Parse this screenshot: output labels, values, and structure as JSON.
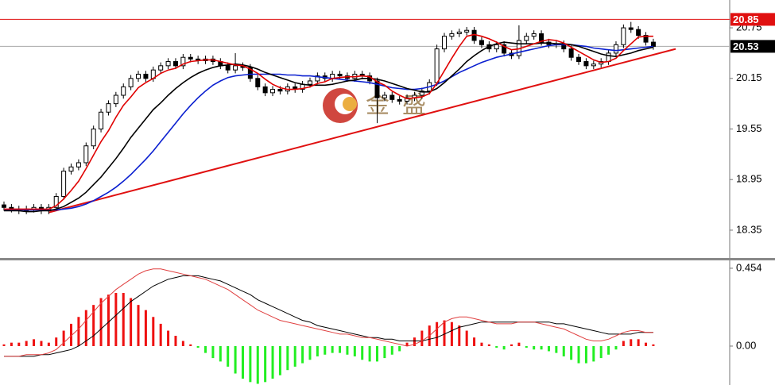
{
  "chart_data": [
    {
      "type": "candlestick",
      "open": [
        18.65,
        18.62,
        18.6,
        18.58,
        18.6,
        18.62,
        18.58,
        18.62,
        18.75,
        19.05,
        19.1,
        19.15,
        19.35,
        19.55,
        19.75,
        19.85,
        19.95,
        20.05,
        20.15,
        20.2,
        20.15,
        20.25,
        20.3,
        20.35,
        20.3,
        20.4,
        20.38,
        20.36,
        20.38,
        20.35,
        20.3,
        20.25,
        20.3,
        20.28,
        20.15,
        20.05,
        19.98,
        20.02,
        20.0,
        20.05,
        20.02,
        20.08,
        20.12,
        20.18,
        20.15,
        20.2,
        20.18,
        20.15,
        20.2,
        20.18,
        20.12,
        19.92,
        19.95,
        19.9,
        19.88,
        19.92,
        19.95,
        20.0,
        20.1,
        20.5,
        20.65,
        20.68,
        20.7,
        20.72,
        20.6,
        20.55,
        20.5,
        20.55,
        20.45,
        20.42,
        20.6,
        20.65,
        20.68,
        20.58,
        20.55,
        20.56,
        20.5,
        20.4,
        20.35,
        20.3,
        20.32,
        20.35,
        20.45,
        20.55,
        20.75,
        20.73,
        20.66,
        20.58
      ],
      "high": [
        18.69,
        18.66,
        18.64,
        18.64,
        18.66,
        18.66,
        18.66,
        18.79,
        19.09,
        19.14,
        19.19,
        19.39,
        19.59,
        19.79,
        19.89,
        19.99,
        20.09,
        20.19,
        20.24,
        20.24,
        20.29,
        20.34,
        20.39,
        20.39,
        20.44,
        20.44,
        20.42,
        20.42,
        20.42,
        20.39,
        20.34,
        20.45,
        20.34,
        20.32,
        20.19,
        20.09,
        20.06,
        20.06,
        20.09,
        20.09,
        20.12,
        20.16,
        20.22,
        20.22,
        20.24,
        20.24,
        20.22,
        20.24,
        20.24,
        20.22,
        20.16,
        19.99,
        19.99,
        19.94,
        19.96,
        19.99,
        20.04,
        20.14,
        20.55,
        20.69,
        20.72,
        20.74,
        20.76,
        20.76,
        20.64,
        20.59,
        20.59,
        20.59,
        20.49,
        20.78,
        20.69,
        20.72,
        20.72,
        20.62,
        20.6,
        20.6,
        20.54,
        20.44,
        20.39,
        20.36,
        20.39,
        20.49,
        20.59,
        20.79,
        20.82,
        20.77,
        20.7,
        20.62
      ],
      "low": [
        18.58,
        18.56,
        18.54,
        18.54,
        18.56,
        18.54,
        18.54,
        18.58,
        18.71,
        19.01,
        19.06,
        19.11,
        19.31,
        19.51,
        19.71,
        19.81,
        19.91,
        20.01,
        20.11,
        20.11,
        20.11,
        20.21,
        20.26,
        20.26,
        20.26,
        20.34,
        20.32,
        20.32,
        20.31,
        20.26,
        20.21,
        20.21,
        20.24,
        20.11,
        20.01,
        19.94,
        19.94,
        19.96,
        19.96,
        19.98,
        19.98,
        20.04,
        20.08,
        20.11,
        20.11,
        20.14,
        20.11,
        20.11,
        20.14,
        20.08,
        19.62,
        19.88,
        19.86,
        19.84,
        19.84,
        19.88,
        19.91,
        19.96,
        20.06,
        20.46,
        20.61,
        20.64,
        20.66,
        20.56,
        20.51,
        20.46,
        20.46,
        20.41,
        20.38,
        20.38,
        20.56,
        20.61,
        20.54,
        20.51,
        20.51,
        20.46,
        20.36,
        20.31,
        20.26,
        20.26,
        20.28,
        20.31,
        20.41,
        20.51,
        20.69,
        20.62,
        20.54,
        20.49
      ],
      "close": [
        18.62,
        18.6,
        18.58,
        18.6,
        18.62,
        18.58,
        18.62,
        18.75,
        19.05,
        19.1,
        19.15,
        19.35,
        19.55,
        19.75,
        19.85,
        19.95,
        20.05,
        20.15,
        20.2,
        20.15,
        20.25,
        20.3,
        20.35,
        20.3,
        20.4,
        20.38,
        20.36,
        20.38,
        20.35,
        20.3,
        20.25,
        20.3,
        20.28,
        20.15,
        20.05,
        19.98,
        20.02,
        20.0,
        20.05,
        20.02,
        20.08,
        20.12,
        20.18,
        20.15,
        20.2,
        20.18,
        20.15,
        20.2,
        20.18,
        20.12,
        19.92,
        19.95,
        19.9,
        19.88,
        19.92,
        19.95,
        20.0,
        20.1,
        20.5,
        20.65,
        20.68,
        20.7,
        20.72,
        20.6,
        20.55,
        20.5,
        20.55,
        20.45,
        20.42,
        20.6,
        20.65,
        20.68,
        20.58,
        20.55,
        20.56,
        20.5,
        20.4,
        20.35,
        20.3,
        20.32,
        20.35,
        20.45,
        20.55,
        20.75,
        20.73,
        20.66,
        20.58,
        20.53
      ],
      "lines": [
        {
          "color": "#0a1fd0",
          "values": [
            18.59,
            18.59,
            18.59,
            18.59,
            18.59,
            18.59,
            18.59,
            18.59,
            18.6,
            18.61,
            18.63,
            18.66,
            18.7,
            18.75,
            18.8,
            18.86,
            18.93,
            19.01,
            19.1,
            19.19,
            19.29,
            19.4,
            19.51,
            19.62,
            19.73,
            19.83,
            19.92,
            20.0,
            20.07,
            20.12,
            20.16,
            20.18,
            20.19,
            20.2,
            20.2,
            20.2,
            20.2,
            20.2,
            20.19,
            20.19,
            20.18,
            20.18,
            20.17,
            20.16,
            20.15,
            20.14,
            20.13,
            20.12,
            20.11,
            20.1,
            20.08,
            20.06,
            20.04,
            20.03,
            20.02,
            20.02,
            20.03,
            20.05,
            20.08,
            20.12,
            20.17,
            20.22,
            20.26,
            20.3,
            20.34,
            20.37,
            20.4,
            20.42,
            20.44,
            20.46,
            20.48,
            20.5,
            20.52,
            20.54,
            20.55,
            20.55,
            20.55,
            20.54,
            20.53,
            20.51,
            20.5,
            20.49,
            20.48,
            20.49,
            20.5,
            20.51,
            20.52,
            20.53
          ]
        },
        {
          "color": "#000000",
          "values": [
            18.58,
            18.58,
            18.58,
            18.57,
            18.57,
            18.58,
            18.58,
            18.6,
            18.63,
            18.68,
            18.73,
            18.8,
            18.89,
            18.98,
            19.09,
            19.2,
            19.32,
            19.45,
            19.56,
            19.67,
            19.78,
            19.86,
            19.95,
            20.03,
            20.1,
            20.16,
            20.21,
            20.25,
            20.28,
            20.3,
            20.31,
            20.32,
            20.31,
            20.29,
            20.26,
            20.22,
            20.19,
            20.16,
            20.13,
            20.1,
            20.08,
            20.07,
            20.07,
            20.07,
            20.08,
            20.1,
            20.12,
            20.13,
            20.15,
            20.15,
            20.14,
            20.12,
            20.09,
            20.06,
            20.03,
            20.01,
            19.99,
            19.99,
            20.03,
            20.1,
            20.18,
            20.26,
            20.35,
            20.42,
            20.48,
            20.53,
            20.56,
            20.58,
            20.57,
            20.56,
            20.56,
            20.56,
            20.57,
            20.57,
            20.56,
            20.56,
            20.55,
            20.53,
            20.5,
            20.47,
            20.44,
            20.42,
            20.41,
            20.43,
            20.45,
            20.48,
            20.5,
            20.52
          ]
        },
        {
          "color": "#e00000",
          "values": [
            18.6,
            18.6,
            18.6,
            18.6,
            18.6,
            18.6,
            18.6,
            18.64,
            18.72,
            18.82,
            18.93,
            19.08,
            19.24,
            19.4,
            19.53,
            19.69,
            19.83,
            19.93,
            20.04,
            20.1,
            20.15,
            20.21,
            20.25,
            20.27,
            20.32,
            20.35,
            20.36,
            20.37,
            20.37,
            20.35,
            20.33,
            20.31,
            20.3,
            20.26,
            20.21,
            20.14,
            20.08,
            20.04,
            20.02,
            20.02,
            20.03,
            20.05,
            20.09,
            20.11,
            20.15,
            20.16,
            20.17,
            20.17,
            20.18,
            20.17,
            20.11,
            20.07,
            20.0,
            19.95,
            19.91,
            19.92,
            19.93,
            19.97,
            20.09,
            20.24,
            20.39,
            20.53,
            20.65,
            20.67,
            20.65,
            20.62,
            20.58,
            20.53,
            20.49,
            20.5,
            20.53,
            20.56,
            20.59,
            20.61,
            20.6,
            20.57,
            20.52,
            20.47,
            20.42,
            20.37,
            20.34,
            20.35,
            20.39,
            20.48,
            20.56,
            20.64,
            20.65,
            20.65
          ]
        }
      ],
      "trendline": {
        "color": "#e01010",
        "x": [
          6,
          90
        ],
        "y": [
          18.56,
          20.5
        ]
      },
      "price_markers": [
        {
          "value": 20.85,
          "color": "#e01010"
        },
        {
          "value": 20.53,
          "color": "#000000"
        }
      ],
      "ylim": [
        18.02,
        21.08
      ],
      "yticks": [
        18.35,
        18.95,
        19.55,
        20.15,
        20.75
      ],
      "watermark": "金盛"
    },
    {
      "type": "macd",
      "series": [
        {
          "color": "#000000",
          "values": [
            -0.06,
            -0.06,
            -0.06,
            -0.06,
            -0.06,
            -0.05,
            -0.05,
            -0.04,
            -0.03,
            -0.02,
            0.0,
            0.03,
            0.06,
            0.1,
            0.14,
            0.18,
            0.22,
            0.26,
            0.29,
            0.32,
            0.35,
            0.37,
            0.39,
            0.4,
            0.41,
            0.41,
            0.41,
            0.4,
            0.39,
            0.38,
            0.36,
            0.34,
            0.32,
            0.3,
            0.27,
            0.25,
            0.23,
            0.21,
            0.19,
            0.17,
            0.15,
            0.14,
            0.12,
            0.11,
            0.1,
            0.09,
            0.08,
            0.07,
            0.06,
            0.05,
            0.05,
            0.04,
            0.04,
            0.03,
            0.03,
            0.03,
            0.03,
            0.04,
            0.05,
            0.07,
            0.09,
            0.11,
            0.12,
            0.13,
            0.14,
            0.14,
            0.14,
            0.14,
            0.14,
            0.14,
            0.14,
            0.14,
            0.14,
            0.14,
            0.13,
            0.13,
            0.12,
            0.11,
            0.1,
            0.09,
            0.08,
            0.07,
            0.07,
            0.07,
            0.07,
            0.08,
            0.08,
            0.08
          ]
        },
        {
          "color": "#e04040",
          "values": [
            -0.06,
            -0.06,
            -0.06,
            -0.05,
            -0.05,
            -0.05,
            -0.04,
            -0.02,
            0.02,
            0.06,
            0.1,
            0.15,
            0.2,
            0.25,
            0.29,
            0.33,
            0.36,
            0.39,
            0.42,
            0.44,
            0.45,
            0.45,
            0.44,
            0.43,
            0.42,
            0.41,
            0.4,
            0.39,
            0.37,
            0.35,
            0.33,
            0.3,
            0.27,
            0.24,
            0.21,
            0.19,
            0.17,
            0.15,
            0.14,
            0.13,
            0.12,
            0.11,
            0.1,
            0.09,
            0.08,
            0.07,
            0.07,
            0.06,
            0.05,
            0.05,
            0.04,
            0.03,
            0.02,
            0.01,
            0.0,
            0.01,
            0.03,
            0.06,
            0.1,
            0.14,
            0.16,
            0.17,
            0.17,
            0.16,
            0.15,
            0.14,
            0.13,
            0.13,
            0.13,
            0.14,
            0.14,
            0.14,
            0.13,
            0.12,
            0.11,
            0.1,
            0.08,
            0.06,
            0.04,
            0.03,
            0.03,
            0.04,
            0.06,
            0.08,
            0.09,
            0.09,
            0.08,
            0.08
          ]
        }
      ],
      "histogram": {
        "up_color": "#ee1010",
        "down_color": "#22ee22",
        "values": [
          0.01,
          0.02,
          0.02,
          0.03,
          0.04,
          0.03,
          0.02,
          0.05,
          0.09,
          0.13,
          0.17,
          0.21,
          0.24,
          0.28,
          0.3,
          0.31,
          0.31,
          0.28,
          0.24,
          0.21,
          0.17,
          0.13,
          0.09,
          0.06,
          0.03,
          0.01,
          -0.01,
          -0.04,
          -0.07,
          -0.09,
          -0.12,
          -0.16,
          -0.19,
          -0.21,
          -0.22,
          -0.21,
          -0.19,
          -0.17,
          -0.14,
          -0.12,
          -0.1,
          -0.08,
          -0.06,
          -0.05,
          -0.04,
          -0.04,
          -0.05,
          -0.06,
          -0.08,
          -0.09,
          -0.09,
          -0.07,
          -0.05,
          -0.03,
          0.02,
          0.05,
          0.09,
          0.12,
          0.14,
          0.15,
          0.14,
          0.12,
          0.09,
          0.05,
          0.02,
          0.01,
          -0.01,
          -0.02,
          0.01,
          0.02,
          -0.01,
          -0.02,
          -0.02,
          -0.03,
          -0.04,
          -0.06,
          -0.08,
          -0.1,
          -0.1,
          -0.09,
          -0.07,
          -0.05,
          -0.02,
          0.03,
          0.04,
          0.04,
          0.02,
          0.01
        ]
      },
      "ylim": [
        -0.227,
        0.5
      ],
      "yticks": [
        {
          "value": 0,
          "label": "0.00"
        },
        0.454
      ]
    }
  ]
}
